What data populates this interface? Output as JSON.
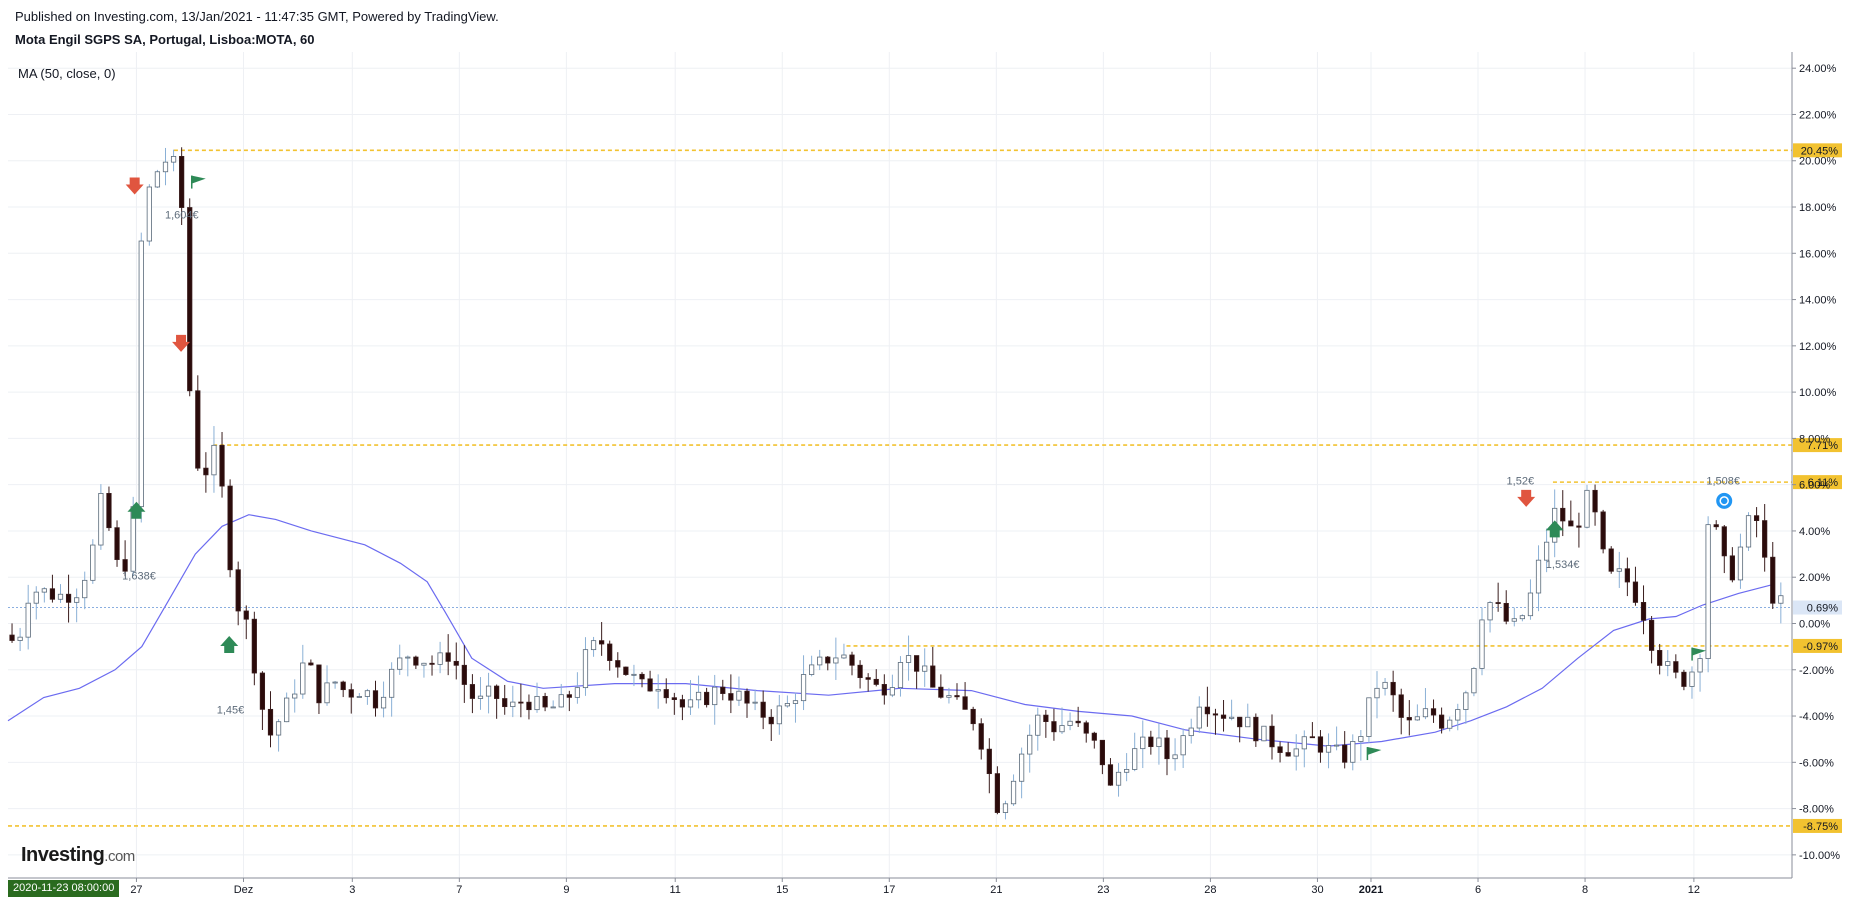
{
  "header": {
    "published": "Published on Investing.com, 13/Jan/2021 - 11:47:35 GMT, Powered by TradingView.",
    "title": "Mota Engil SGPS SA, Portugal, Lisboa:MOTA, 60",
    "indicator": "MA (50, close, 0)"
  },
  "footer": {
    "logo_main": "Investing",
    "logo_domain": ".com",
    "start_date": "2020-11-23 08:00:00"
  },
  "colors": {
    "up_fill": "#ffffff",
    "down_fill": "#2b0b0b",
    "candle_outline": "#3a1d1d",
    "ma_line": "#6b6bf0",
    "level_line": "#f2c230",
    "marker_sell": "#e0553f",
    "marker_buy": "#2e8a57",
    "flag": "#2e8a57",
    "current_price": "#8aaee0",
    "badge_info": "#2196f3",
    "date_box": "#2a6b1f"
  },
  "chart_data": {
    "type": "candlestick",
    "ylim": [
      -11,
      24.7
    ],
    "yticks": [
      {
        "value": 24,
        "label": "24.00%"
      },
      {
        "value": 22,
        "label": "22.00%"
      },
      {
        "value": 20,
        "label": "20.00%"
      },
      {
        "value": 18,
        "label": "18.00%"
      },
      {
        "value": 16,
        "label": "16.00%"
      },
      {
        "value": 14,
        "label": "14.00%"
      },
      {
        "value": 12,
        "label": "12.00%"
      },
      {
        "value": 10,
        "label": "10.00%"
      },
      {
        "value": 8,
        "label": "8.00%"
      },
      {
        "value": 6,
        "label": "6.00%"
      },
      {
        "value": 4,
        "label": "4.00%"
      },
      {
        "value": 2,
        "label": "2.00%"
      },
      {
        "value": 0,
        "label": "0.00%"
      },
      {
        "value": -2,
        "label": "-2.00%"
      },
      {
        "value": -4,
        "label": "-4.00%"
      },
      {
        "value": -6,
        "label": "-6.00%"
      },
      {
        "value": -8,
        "label": "-8.00%"
      },
      {
        "value": -10,
        "label": "-10.00%"
      }
    ],
    "xlabels": [
      {
        "label": "27",
        "pos": 0.072
      },
      {
        "label": "Dez",
        "pos": 0.132
      },
      {
        "label": "3",
        "pos": 0.193
      },
      {
        "label": "7",
        "pos": 0.253
      },
      {
        "label": "9",
        "pos": 0.313
      },
      {
        "label": "11",
        "pos": 0.374
      },
      {
        "label": "15",
        "pos": 0.434
      },
      {
        "label": "17",
        "pos": 0.494
      },
      {
        "label": "21",
        "pos": 0.554
      },
      {
        "label": "23",
        "pos": 0.614
      },
      {
        "label": "28",
        "pos": 0.674
      },
      {
        "label": "30",
        "pos": 0.734
      },
      {
        "label": "2021",
        "pos": 0.764,
        "bold": true
      },
      {
        "label": "6",
        "pos": 0.824
      },
      {
        "label": "8",
        "pos": 0.884
      },
      {
        "label": "12",
        "pos": 0.945
      }
    ],
    "levels": [
      {
        "value": 20.45,
        "label": "20.45%",
        "start": 0.093
      },
      {
        "value": 7.71,
        "label": "7.71%",
        "start": 0.115
      },
      {
        "value": 6.11,
        "label": "6.11%",
        "start": 0.866
      },
      {
        "value": -0.97,
        "label": "-0.97%",
        "start": 0.47
      },
      {
        "value": -8.75,
        "label": "-8.75%",
        "start": 0.0
      }
    ],
    "current": {
      "value": 0.69,
      "label": "0.69%"
    },
    "price_path": [
      [
        0.0,
        -0.5
      ],
      [
        0.005,
        -1.0
      ],
      [
        0.012,
        1.5
      ],
      [
        0.03,
        1.2
      ],
      [
        0.04,
        1.5
      ],
      [
        0.047,
        3.0
      ],
      [
        0.052,
        5.2
      ],
      [
        0.057,
        4.0
      ],
      [
        0.062,
        2.2
      ],
      [
        0.067,
        2.8
      ],
      [
        0.072,
        5.8
      ],
      [
        0.074,
        16.0
      ],
      [
        0.078,
        18.5
      ],
      [
        0.085,
        19.8
      ],
      [
        0.091,
        20.2
      ],
      [
        0.097,
        18.8
      ],
      [
        0.1,
        11.5
      ],
      [
        0.106,
        7.0
      ],
      [
        0.11,
        6.5
      ],
      [
        0.117,
        7.5
      ],
      [
        0.122,
        4.5
      ],
      [
        0.127,
        1.0
      ],
      [
        0.132,
        0.5
      ],
      [
        0.137,
        -1.2
      ],
      [
        0.142,
        -3.5
      ],
      [
        0.147,
        -4.8
      ],
      [
        0.155,
        -3.8
      ],
      [
        0.162,
        -2.5
      ],
      [
        0.167,
        -1.5
      ],
      [
        0.175,
        -3.2
      ],
      [
        0.183,
        -2.5
      ],
      [
        0.19,
        -3.0
      ],
      [
        0.198,
        -2.8
      ],
      [
        0.206,
        -3.3
      ],
      [
        0.215,
        -2.2
      ],
      [
        0.223,
        -1.3
      ],
      [
        0.232,
        -1.5
      ],
      [
        0.24,
        -1.8
      ],
      [
        0.248,
        -1.2
      ],
      [
        0.255,
        -2.5
      ],
      [
        0.263,
        -3.5
      ],
      [
        0.272,
        -3.0
      ],
      [
        0.28,
        -3.8
      ],
      [
        0.29,
        -3.2
      ],
      [
        0.3,
        -3.8
      ],
      [
        0.31,
        -3.5
      ],
      [
        0.318,
        -2.8
      ],
      [
        0.325,
        -1.2
      ],
      [
        0.333,
        -0.8
      ],
      [
        0.34,
        -1.5
      ],
      [
        0.348,
        -2.2
      ],
      [
        0.356,
        -2.8
      ],
      [
        0.365,
        -2.5
      ],
      [
        0.372,
        -3.0
      ],
      [
        0.38,
        -3.8
      ],
      [
        0.39,
        -3.2
      ],
      [
        0.4,
        -2.8
      ],
      [
        0.41,
        -3.2
      ],
      [
        0.418,
        -3.8
      ],
      [
        0.428,
        -4.0
      ],
      [
        0.438,
        -3.5
      ],
      [
        0.445,
        -2.5
      ],
      [
        0.455,
        -1.8
      ],
      [
        0.462,
        -1.3
      ],
      [
        0.47,
        -1.5
      ],
      [
        0.478,
        -2.2
      ],
      [
        0.487,
        -2.8
      ],
      [
        0.495,
        -2.5
      ],
      [
        0.5,
        -1.3
      ],
      [
        0.51,
        -1.8
      ],
      [
        0.518,
        -2.8
      ],
      [
        0.527,
        -3.2
      ],
      [
        0.535,
        -3.8
      ],
      [
        0.543,
        -4.2
      ],
      [
        0.55,
        -6.5
      ],
      [
        0.556,
        -8.2
      ],
      [
        0.562,
        -6.8
      ],
      [
        0.57,
        -5.2
      ],
      [
        0.578,
        -4.0
      ],
      [
        0.587,
        -4.5
      ],
      [
        0.596,
        -4.2
      ],
      [
        0.605,
        -5.0
      ],
      [
        0.612,
        -5.5
      ],
      [
        0.618,
        -7.2
      ],
      [
        0.625,
        -6.0
      ],
      [
        0.633,
        -5.5
      ],
      [
        0.642,
        -5.0
      ],
      [
        0.65,
        -5.8
      ],
      [
        0.66,
        -4.8
      ],
      [
        0.668,
        -3.2
      ],
      [
        0.678,
        -3.8
      ],
      [
        0.688,
        -4.0
      ],
      [
        0.697,
        -4.5
      ],
      [
        0.706,
        -5.0
      ],
      [
        0.715,
        -5.3
      ],
      [
        0.723,
        -5.5
      ],
      [
        0.732,
        -5.0
      ],
      [
        0.74,
        -5.5
      ],
      [
        0.748,
        -5.8
      ],
      [
        0.756,
        -5.2
      ],
      [
        0.762,
        -3.8
      ],
      [
        0.768,
        -2.5
      ],
      [
        0.775,
        -3.0
      ],
      [
        0.783,
        -4.5
      ],
      [
        0.79,
        -4.2
      ],
      [
        0.797,
        -3.8
      ],
      [
        0.805,
        -4.3
      ],
      [
        0.812,
        -3.5
      ],
      [
        0.82,
        -2.5
      ],
      [
        0.826,
        0.5
      ],
      [
        0.832,
        1.0
      ],
      [
        0.838,
        0.2
      ],
      [
        0.845,
        -0.2
      ],
      [
        0.852,
        0.8
      ],
      [
        0.858,
        2.5
      ],
      [
        0.862,
        3.5
      ],
      [
        0.866,
        4.8
      ],
      [
        0.872,
        4.5
      ],
      [
        0.878,
        3.8
      ],
      [
        0.884,
        5.5
      ],
      [
        0.89,
        4.5
      ],
      [
        0.895,
        2.5
      ],
      [
        0.9,
        1.8
      ],
      [
        0.905,
        2.2
      ],
      [
        0.91,
        1.5
      ],
      [
        0.915,
        1.0
      ],
      [
        0.92,
        -0.5
      ],
      [
        0.926,
        -1.5
      ],
      [
        0.932,
        -2.2
      ],
      [
        0.938,
        -2.5
      ],
      [
        0.944,
        -2.0
      ],
      [
        0.948,
        -1.8
      ],
      [
        0.952,
        4.5
      ],
      [
        0.957,
        4.0
      ],
      [
        0.962,
        2.5
      ],
      [
        0.968,
        2.2
      ],
      [
        0.974,
        4.2
      ],
      [
        0.98,
        4.5
      ],
      [
        0.985,
        2.5
      ],
      [
        0.99,
        1.0
      ],
      [
        0.996,
        0.7
      ]
    ],
    "ma": [
      [
        0.0,
        -4.2
      ],
      [
        0.02,
        -3.2
      ],
      [
        0.04,
        -2.8
      ],
      [
        0.06,
        -2.0
      ],
      [
        0.075,
        -1.0
      ],
      [
        0.09,
        1.0
      ],
      [
        0.105,
        3.0
      ],
      [
        0.12,
        4.2
      ],
      [
        0.135,
        4.7
      ],
      [
        0.15,
        4.5
      ],
      [
        0.17,
        4.0
      ],
      [
        0.2,
        3.4
      ],
      [
        0.22,
        2.6
      ],
      [
        0.235,
        1.8
      ],
      [
        0.245,
        0.5
      ],
      [
        0.26,
        -1.5
      ],
      [
        0.28,
        -2.5
      ],
      [
        0.3,
        -2.8
      ],
      [
        0.34,
        -2.6
      ],
      [
        0.38,
        -2.6
      ],
      [
        0.42,
        -2.9
      ],
      [
        0.46,
        -3.1
      ],
      [
        0.5,
        -2.8
      ],
      [
        0.54,
        -2.9
      ],
      [
        0.57,
        -3.5
      ],
      [
        0.6,
        -3.8
      ],
      [
        0.63,
        -4.0
      ],
      [
        0.66,
        -4.6
      ],
      [
        0.7,
        -5.0
      ],
      [
        0.74,
        -5.3
      ],
      [
        0.77,
        -5.1
      ],
      [
        0.8,
        -4.7
      ],
      [
        0.82,
        -4.2
      ],
      [
        0.84,
        -3.6
      ],
      [
        0.86,
        -2.8
      ],
      [
        0.88,
        -1.5
      ],
      [
        0.9,
        -0.3
      ],
      [
        0.92,
        0.2
      ],
      [
        0.935,
        0.3
      ],
      [
        0.95,
        0.8
      ],
      [
        0.97,
        1.3
      ],
      [
        0.99,
        1.7
      ]
    ],
    "markers": [
      {
        "type": "sell",
        "x": 0.071,
        "y": 18.8
      },
      {
        "type": "sell",
        "x": 0.097,
        "y": 12.0
      },
      {
        "type": "buy",
        "x": 0.072,
        "y": 5.0
      },
      {
        "type": "buy",
        "x": 0.124,
        "y": -0.8
      },
      {
        "type": "sell",
        "x": 0.851,
        "y": 5.3
      },
      {
        "type": "buy",
        "x": 0.867,
        "y": 4.2
      },
      {
        "type": "flag",
        "x": 0.103,
        "y": 19.1
      },
      {
        "type": "flag",
        "x": 0.762,
        "y": -5.6
      },
      {
        "type": "flag",
        "x": 0.944,
        "y": -1.3
      },
      {
        "type": "badge",
        "x": 0.962,
        "y": 5.3
      }
    ],
    "price_labels": [
      {
        "text": "1,604€",
        "x": 0.088,
        "y": 17.5
      },
      {
        "text": "1,638€",
        "x": 0.064,
        "y": 1.9
      },
      {
        "text": "1,45€",
        "x": 0.117,
        "y": -3.9
      },
      {
        "text": "1,52€",
        "x": 0.84,
        "y": 6.0
      },
      {
        "text": "1,534€",
        "x": 0.862,
        "y": 2.4
      },
      {
        "text": "1,508€",
        "x": 0.952,
        "y": 6.0
      }
    ],
    "grid": true,
    "legend": "none"
  }
}
